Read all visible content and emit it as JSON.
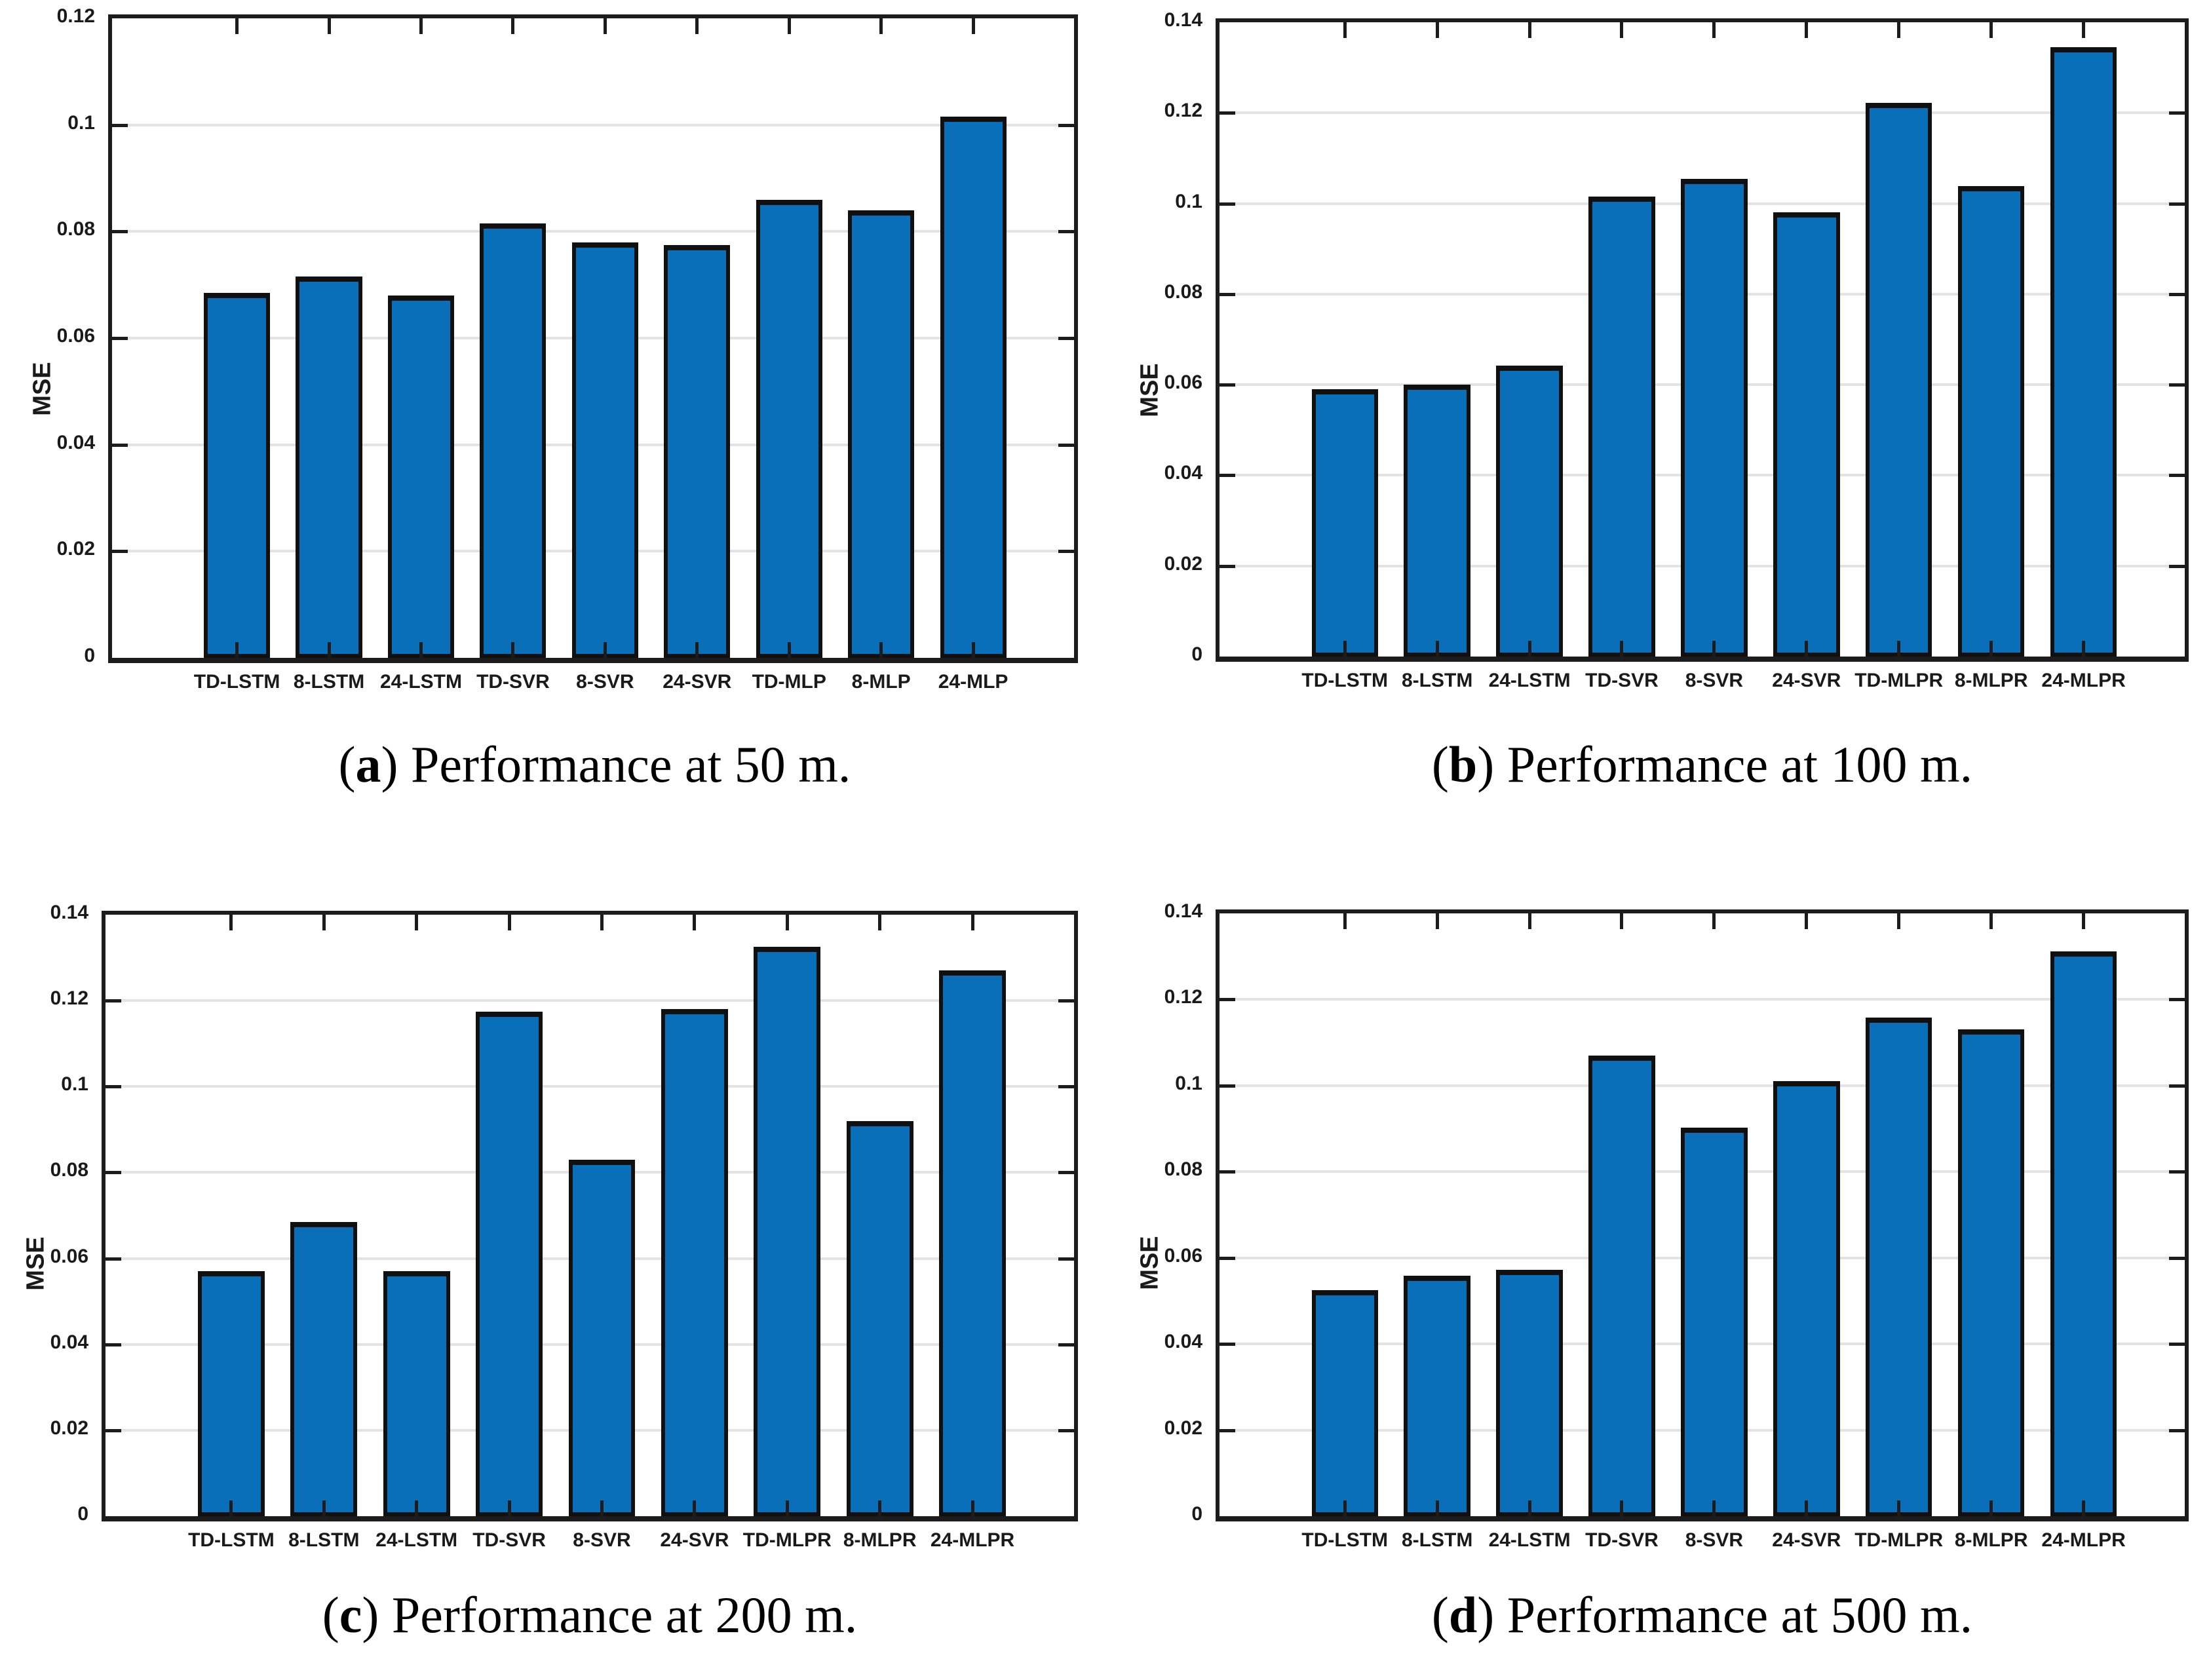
{
  "page": {
    "background": "#ffffff"
  },
  "styles": {
    "bar_fill": "#0a6fb9",
    "bar_border": "#101010",
    "axis_color": "#1c1c1c",
    "grid_color": "#e3e3e3",
    "text_color": "#1a1a1a"
  },
  "chart_data": [
    {
      "id": "a",
      "type": "bar",
      "title": "",
      "xlabel": "",
      "ylabel": "MSE",
      "ylim": [
        0,
        0.12
      ],
      "ytick_values": [
        0,
        0.02,
        0.04,
        0.06,
        0.08,
        0.1,
        0.12
      ],
      "ytick_labels": [
        "0",
        "0.02",
        "0.04",
        "0.06",
        "0.08",
        "0.1",
        "0.12"
      ],
      "grid": "horizontal",
      "legend": "none",
      "categories": [
        "TD-LSTM",
        "8-LSTM",
        "24-LSTM",
        "TD-SVR",
        "8-SVR",
        "24-SVR",
        "TD-MLP",
        "8-MLP",
        "24-MLP"
      ],
      "values": [
        0.0685,
        0.0715,
        0.068,
        0.0815,
        0.078,
        0.0775,
        0.086,
        0.084,
        0.1015
      ],
      "caption": {
        "open": "(",
        "letter": "a",
        "close": ")",
        "text": " Performance at 50 m."
      }
    },
    {
      "id": "b",
      "type": "bar",
      "title": "",
      "xlabel": "",
      "ylabel": "MSE",
      "ylim": [
        0,
        0.14
      ],
      "ytick_values": [
        0,
        0.02,
        0.04,
        0.06,
        0.08,
        0.1,
        0.12,
        0.14
      ],
      "ytick_labels": [
        "0",
        "0.02",
        "0.04",
        "0.06",
        "0.08",
        "0.1",
        "0.12",
        "0.14"
      ],
      "grid": "horizontal",
      "legend": "none",
      "categories": [
        "TD-LSTM",
        "8-LSTM",
        "24-LSTM",
        "TD-SVR",
        "8-SVR",
        "24-SVR",
        "TD-MLPR",
        "8-MLPR",
        "24-MLPR"
      ],
      "values": [
        0.059,
        0.06,
        0.0642,
        0.1015,
        0.1055,
        0.098,
        0.1222,
        0.1038,
        0.1345
      ],
      "caption": {
        "open": "(",
        "letter": "b",
        "close": ")",
        "text": " Performance at 100 m."
      }
    },
    {
      "id": "c",
      "type": "bar",
      "title": "",
      "xlabel": "",
      "ylabel": "MSE",
      "ylim": [
        0,
        0.14
      ],
      "ytick_values": [
        0,
        0.02,
        0.04,
        0.06,
        0.08,
        0.1,
        0.12,
        0.14
      ],
      "ytick_labels": [
        "0",
        "0.02",
        "0.04",
        "0.06",
        "0.08",
        "0.1",
        "0.12",
        "0.14"
      ],
      "grid": "horizontal",
      "legend": "none",
      "categories": [
        "TD-LSTM",
        "8-LSTM",
        "24-LSTM",
        "TD-SVR",
        "8-SVR",
        "24-SVR",
        "TD-MLPR",
        "8-MLPR",
        "24-MLPR"
      ],
      "values": [
        0.057,
        0.0685,
        0.057,
        0.1175,
        0.083,
        0.118,
        0.1325,
        0.092,
        0.127
      ],
      "caption": {
        "open": "(",
        "letter": "c",
        "close": ")",
        "text": " Performance at 200 m."
      }
    },
    {
      "id": "d",
      "type": "bar",
      "title": "",
      "xlabel": "",
      "ylabel": "MSE",
      "ylim": [
        0,
        0.14
      ],
      "ytick_values": [
        0,
        0.02,
        0.04,
        0.06,
        0.08,
        0.1,
        0.12,
        0.14
      ],
      "ytick_labels": [
        "0",
        "0.02",
        "0.04",
        "0.06",
        "0.08",
        "0.1",
        "0.12",
        "0.14"
      ],
      "grid": "horizontal",
      "legend": "none",
      "categories": [
        "TD-LSTM",
        "8-LSTM",
        "24-LSTM",
        "TD-SVR",
        "8-SVR",
        "24-SVR",
        "TD-MLPR",
        "8-MLPR",
        "24-MLPR"
      ],
      "values": [
        0.0525,
        0.0558,
        0.0572,
        0.107,
        0.0902,
        0.101,
        0.1158,
        0.113,
        0.1312
      ],
      "caption": {
        "open": "(",
        "letter": "d",
        "close": ")",
        "text": " Performance at 500 m."
      }
    }
  ]
}
